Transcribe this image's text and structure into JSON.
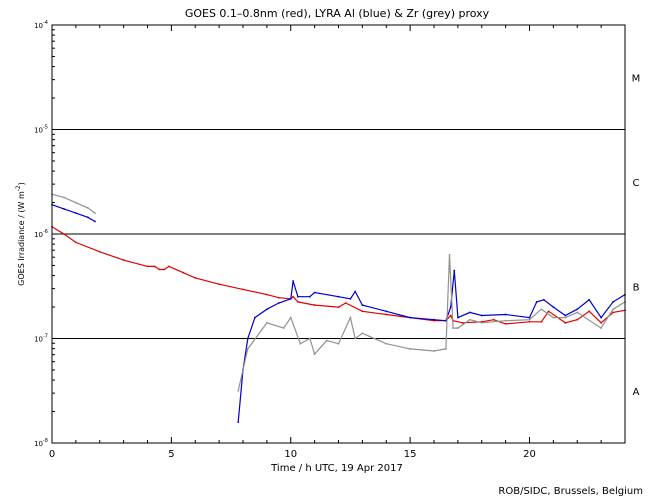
{
  "chart_data": {
    "type": "line",
    "title": "GOES 0.1–0.8nm (red), LYRA Al (blue) & Zr (grey) proxy",
    "xlabel": "Time / h UTC, 19 Apr 2017",
    "ylabel": "GOES Irradiance / (W m⁻²)",
    "ylabel_base": "GOES Irradiance / (W m",
    "ylabel_exp": "-2",
    "ylabel_close": ")",
    "xlim": [
      0,
      24
    ],
    "ylim_exp": [
      -8,
      -4
    ],
    "yscale": "log",
    "x_ticks": [
      0,
      5,
      10,
      15,
      20
    ],
    "x_tick_labels": [
      "0",
      "5",
      "10",
      "15",
      "20"
    ],
    "y_ticks": [
      {
        "exp": -8,
        "base": "10",
        "sup": "-8"
      },
      {
        "exp": -7,
        "base": "10",
        "sup": "-7"
      },
      {
        "exp": -6,
        "base": "10",
        "sup": "-6"
      },
      {
        "exp": -5,
        "base": "10",
        "sup": "-5"
      },
      {
        "exp": -4,
        "base": "10",
        "sup": "-4"
      }
    ],
    "flare_class_lines_exp": [
      -7,
      -6,
      -5
    ],
    "flare_classes": [
      {
        "label": "A",
        "exp": -7.5
      },
      {
        "label": "B",
        "exp": -6.5
      },
      {
        "label": "C",
        "exp": -5.5
      },
      {
        "label": "M",
        "exp": -4.5
      }
    ],
    "series": [
      {
        "name": "GOES 0.1-0.8nm",
        "color": "#e00000",
        "x": [
          0,
          0.5,
          1,
          2,
          3,
          4,
          4.3,
          4.5,
          4.7,
          4.9,
          5.5,
          6,
          7,
          8,
          9,
          9.5,
          10,
          10.1,
          10.3,
          11,
          12,
          12.3,
          13,
          14,
          15,
          16,
          16.5,
          16.7,
          16.8,
          17.2,
          18,
          18.5,
          19,
          20,
          20.5,
          20.8,
          21.5,
          22,
          22.5,
          23,
          23.5,
          24
        ],
        "y_exp": [
          -5.93,
          -6.0,
          -6.08,
          -6.17,
          -6.25,
          -6.31,
          -6.31,
          -6.34,
          -6.34,
          -6.31,
          -6.37,
          -6.42,
          -6.48,
          -6.53,
          -6.58,
          -6.61,
          -6.62,
          -6.6,
          -6.65,
          -6.68,
          -6.7,
          -6.66,
          -6.74,
          -6.77,
          -6.8,
          -6.83,
          -6.83,
          -6.78,
          -6.83,
          -6.85,
          -6.84,
          -6.82,
          -6.86,
          -6.84,
          -6.84,
          -6.74,
          -6.85,
          -6.82,
          -6.74,
          -6.85,
          -6.75,
          -6.73
        ]
      },
      {
        "name": "LYRA Al",
        "color": "#0000d0",
        "x": [
          0,
          0.5,
          1,
          1.5,
          1.8,
          7.8,
          8,
          8.2,
          8.5,
          9,
          9.5,
          10,
          10.1,
          10.3,
          10.8,
          11,
          12,
          12.5,
          12.7,
          13,
          14,
          15,
          16,
          16.5,
          16.7,
          16.85,
          17,
          17.5,
          18,
          19,
          20,
          20.3,
          20.6,
          21,
          21.5,
          22,
          22.5,
          23,
          23.5,
          24
        ],
        "y_exp": [
          -5.72,
          -5.76,
          -5.8,
          -5.84,
          -5.88,
          -7.8,
          -7.3,
          -7.0,
          -6.8,
          -6.72,
          -6.66,
          -6.62,
          -6.45,
          -6.6,
          -6.6,
          -6.56,
          -6.6,
          -6.62,
          -6.55,
          -6.68,
          -6.74,
          -6.8,
          -6.82,
          -6.83,
          -6.7,
          -6.35,
          -6.8,
          -6.75,
          -6.78,
          -6.77,
          -6.8,
          -6.65,
          -6.63,
          -6.7,
          -6.78,
          -6.72,
          -6.63,
          -6.8,
          -6.65,
          -6.58
        ]
      },
      {
        "name": "LYRA Zr",
        "color": "#909090",
        "x": [
          0,
          0.5,
          1,
          1.5,
          1.8,
          7.8,
          8.2,
          9,
          9.7,
          10,
          10.4,
          10.8,
          11,
          11.5,
          12,
          12.5,
          12.7,
          13,
          14,
          15,
          16,
          16.5,
          16.65,
          16.8,
          17,
          17.5,
          18,
          19,
          20,
          20.5,
          21,
          21.5,
          22,
          23,
          23.5,
          24
        ],
        "y_exp": [
          -5.62,
          -5.65,
          -5.7,
          -5.75,
          -5.8,
          -7.5,
          -7.1,
          -6.85,
          -6.9,
          -6.8,
          -7.05,
          -7.0,
          -7.15,
          -7.02,
          -7.05,
          -6.8,
          -7.0,
          -6.95,
          -7.05,
          -7.1,
          -7.12,
          -7.1,
          -6.2,
          -6.9,
          -6.9,
          -6.82,
          -6.85,
          -6.83,
          -6.82,
          -6.72,
          -6.8,
          -6.8,
          -6.75,
          -6.9,
          -6.72,
          -6.65
        ]
      }
    ]
  },
  "footer": {
    "credit": "ROB/SIDC, Brussels, Belgium"
  }
}
